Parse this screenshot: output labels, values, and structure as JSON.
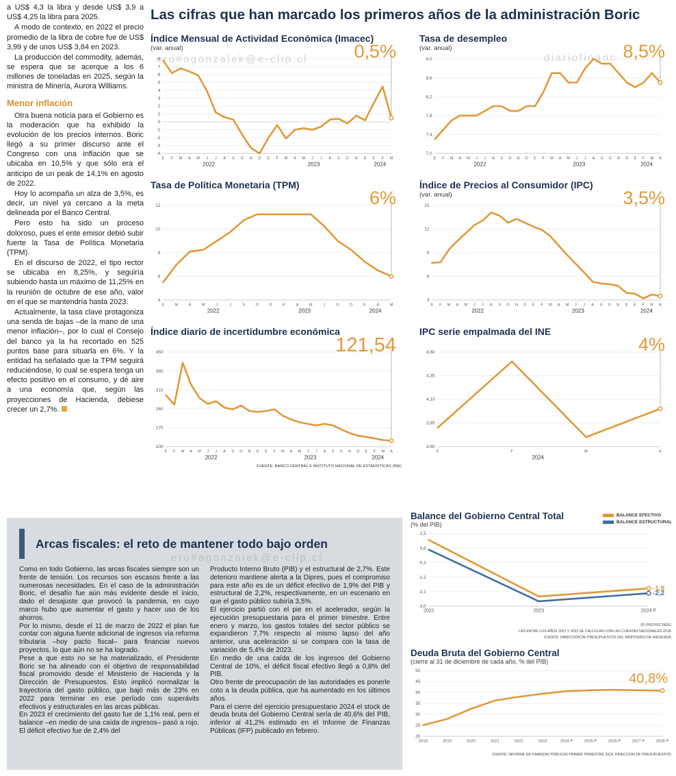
{
  "watermarks": [
    "ero#agonzalek@e-clip.cl",
    "diariofinanc",
    "ero#agonzalek@e-clip.cl"
  ],
  "main_title": "Las cifras que han marcado los primeros años de la administración Boric",
  "left_article": {
    "paragraphs": [
      "a US$ 4,3 la libra y desde US$ 3,9 a US$ 4,25 la libra para 2025.",
      "A modo de contexto, en 2022 el precio promedio de la libra de cobre fue de US$ 3,99 y de unos US$ 3,84 en 2023.",
      "La producción del commodity, además, se espera que se acerque a los 6 millones de toneladas en 2025, según la ministra de Minería, Aurora Williams."
    ],
    "heading": "Menor inflación",
    "paragraphs2": [
      "Otra buena noticia para el Gobierno es la moderación que ha exhibido la evolución de los precios internos. Boric llegó a su primer discurso ante el Congreso con una inflación que se ubicaba en 10,5% y que sólo era el anticipo de un peak de 14,1% en agosto de 2022.",
      "Hoy lo acompaña un alza de 3,5%, es decir, un nivel ya cercano a la meta delineada por el Banco Central.",
      "Pero esto ha sido un proceso doloroso, pues el ente emisor debió subir fuerte la Tasa de Política Monetaria (TPM).",
      "En el discurso de 2022, el tipo rector se ubicaba en 8,25%, y seguiría subiendo hasta un máximo de 11,25% en la reunión de octubre de ese año, valor en el que se mantendría hasta 2023.",
      "Actualmente, la tasa clave protagoniza una senda de bajas –de la mano de una menor inflación–, por lo cual el Consejo del banco ya la ha recortado en 525 puntos base para situarla en 6%. Y la entidad ha señalado que la TPM seguirá reduciéndose, lo cual se espera tenga un efecto positivo en el consumo, y dé aire a una economía que, según las proyecciones de Hacienda, debiese crecer un 2,7%."
    ]
  },
  "fiscal_box": {
    "title": "Arcas fiscales: el reto de mantener todo bajo orden",
    "col1": [
      "Como en todo Gobierno, las arcas fiscales siempre son un frente de tensión. Los recursos son escasos frente a las numerosas necesidades. En el caso de la administración Boric, el desafío fue aún más evidente desde el inicio, dado el desajuste que provocó la pandemia, en cuyo marco hubo que aumentar el gasto y hacer uso de los ahorros.",
      "Por lo mismo, desde el 11 de marzo de 2022 el plan fue contar con alguna fuente adicional de ingresos vía reforma tributaria –hoy pacto fiscal– para financiar nuevos proyectos, lo que aún no se ha logrado.",
      "Pese a que esto no se ha materializado, el Presidente Boric se ha alineado con el objetivo de responsabilidad fiscal promovido desde el Ministerio de Hacienda y la Dirección de Presupuestos. Esto implicó normalizar la trayectoria del gasto público, que bajó más de 23% en 2022 para terminar en ese período con superávits efectivos y estructurales en las arcas públicas.",
      "En 2023 el crecimiento del gasto fue de 1,1% real, pero el balance –en medio de una caída de ingresos– pasó a rojo. El déficit efectivo fue de 2,4% del"
    ],
    "col2": [
      "Producto Interno Bruto (PIB) y el estructural de 2,7%. Este deterioro mantiene alerta a la Dipres, pues el compromiso para este año es de un déficit efectivo de 1,9% del PIB y estructural de 2,2%, respectivamente, en un escenario en que el gasto público subiría 3,5%.",
      "El ejercicio partió con el pie en el acelerador, según la ejecución presupuestaria para el primer trimestre. Entre enero y marzo, los gastos totales del sector público se expandieron 7,7% respecto al mismo lapso del año anterior, una aceleración si se compara con la tasa de variación de 5,4% de 2023.",
      "En medio de una caída de los ingresos del Gobierno Central de 10%, el déficit fiscal efectivo llegó a 0,8% del PIB.",
      "Otro frente de preocupación de las autoridades es ponerle coto a la deuda pública, que ha aumentado en los últimos años.",
      "Para el cierre del ejercicio presupuestario 2024 el stock de deuda bruta del Gobierno Central sería de 40,6% del PIB, inferior al 41,2% estimado en el Informe de Finanzas Públicas (IFP) publicado en febrero."
    ]
  },
  "colors": {
    "accent_orange": "#e0993a",
    "accent_blue": "#3f6fa0",
    "title_navy": "#1d3150"
  },
  "chart_data": [
    {
      "id": "imacec",
      "type": "line",
      "title": "Índice Mensual de Actividad Económica (Imacec)",
      "subtitle": "(var. anual)",
      "big_value": "0,5%",
      "ylim": [
        -4,
        8
      ],
      "ytick_values": [
        8,
        7,
        6,
        5,
        4,
        3,
        2,
        1,
        0,
        -1,
        -2,
        -3,
        -4
      ],
      "ytick_labels": [
        "8",
        "7",
        "6",
        "5",
        "4",
        "3",
        "2",
        "1",
        "0",
        "-1",
        "-2",
        "-3",
        "-4"
      ],
      "xlabels": [
        "E",
        "F",
        "M",
        "A",
        "M",
        "J",
        "J",
        "A",
        "S",
        "O",
        "N",
        "D",
        "E",
        "F",
        "M",
        "A",
        "M",
        "J",
        "J",
        "A",
        "S",
        "O",
        "N",
        "D",
        "E",
        "F",
        "M"
      ],
      "years": [
        {
          "label": "2022",
          "f": 0.2
        },
        {
          "label": "2023",
          "f": 0.66
        },
        {
          "label": "2024",
          "f": 0.95
        }
      ],
      "series": [
        {
          "name": "Imacec",
          "color": "#e0993a",
          "values": [
            7.8,
            6.2,
            6.8,
            6.4,
            5.9,
            3.9,
            1.2,
            0.6,
            0.3,
            -1.6,
            -3.3,
            -4.0,
            -2.0,
            -0.4,
            -2.1,
            -1.0,
            -0.8,
            -1.0,
            -0.6,
            0.3,
            0.4,
            -0.2,
            0.8,
            0.2,
            2.4,
            4.5,
            0.5
          ]
        }
      ],
      "marker": true,
      "value_line": true
    },
    {
      "id": "desempleo",
      "type": "line",
      "title": "Tasa de desempleo",
      "subtitle": "(var. anual)",
      "big_value": "8,5%",
      "ylim": [
        7.0,
        9.0
      ],
      "ytick_values": [
        9.0,
        8.6,
        8.2,
        7.8,
        7.4,
        7.0
      ],
      "ytick_labels": [
        "9,0",
        "8,6",
        "8,2",
        "7,8",
        "7,4",
        "7,0"
      ],
      "xlabels": [
        "E",
        "F",
        "M",
        "A",
        "M",
        "J",
        "J",
        "A",
        "S",
        "O",
        "N",
        "D",
        "E",
        "F",
        "M",
        "A",
        "M",
        "J",
        "J",
        "A",
        "S",
        "O",
        "N",
        "D",
        "E",
        "F",
        "M",
        "A"
      ],
      "years": [
        {
          "label": "2022",
          "f": 0.2
        },
        {
          "label": "2023",
          "f": 0.64
        },
        {
          "label": "2024",
          "f": 0.94
        }
      ],
      "series": [
        {
          "name": "Tasa de desempleo",
          "color": "#e0993a",
          "values": [
            7.3,
            7.5,
            7.7,
            7.8,
            7.8,
            7.8,
            7.9,
            8.0,
            8.0,
            7.9,
            7.9,
            8.0,
            8.0,
            8.3,
            8.7,
            8.7,
            8.5,
            8.5,
            8.8,
            9.0,
            8.9,
            8.9,
            8.7,
            8.5,
            8.4,
            8.5,
            8.7,
            8.5
          ]
        }
      ],
      "marker": true,
      "value_line": true
    },
    {
      "id": "tpm",
      "type": "line",
      "title": "Tasa de Política Monetaria (TPM)",
      "subtitle": "",
      "big_value": "6%",
      "ylim": [
        4,
        12
      ],
      "ytick_values": [
        12,
        10,
        8,
        6,
        4
      ],
      "ytick_labels": [
        "12",
        "10",
        "8",
        "6",
        "4"
      ],
      "xlabels": [
        "E",
        "M",
        "A",
        "M",
        "J",
        "J",
        "S",
        "O",
        "D",
        "E",
        "A",
        "M",
        "J",
        "O",
        "D",
        "E",
        "A",
        "M"
      ],
      "years": [
        {
          "label": "2022",
          "f": 0.22
        },
        {
          "label": "2023",
          "f": 0.62
        },
        {
          "label": "2024",
          "f": 0.93
        }
      ],
      "series": [
        {
          "name": "TPM",
          "color": "#e0993a",
          "values": [
            5.5,
            7.0,
            8.1,
            8.25,
            9.0,
            9.75,
            10.75,
            11.25,
            11.25,
            11.25,
            11.25,
            11.25,
            10.25,
            9.0,
            8.25,
            7.25,
            6.5,
            6.0
          ]
        }
      ],
      "marker": true,
      "value_line": true
    },
    {
      "id": "ipc",
      "type": "line",
      "title": "Índice de Precios al Consumidor (IPC)",
      "subtitle": "(var. anual)",
      "big_value": "3,5%",
      "ylim": [
        3,
        15
      ],
      "ytick_values": [
        15,
        12,
        9,
        6,
        3
      ],
      "ytick_labels": [
        "15",
        "12",
        "9",
        "6",
        "3"
      ],
      "xlabels": [
        "E",
        "F",
        "M",
        "A",
        "M",
        "J",
        "J",
        "A",
        "S",
        "O",
        "N",
        "D",
        "E",
        "F",
        "M",
        "A",
        "M",
        "J",
        "J",
        "A",
        "S",
        "O",
        "N",
        "D",
        "E",
        "F",
        "M",
        "A"
      ],
      "years": [
        {
          "label": "2022",
          "f": 0.2
        },
        {
          "label": "2023",
          "f": 0.64
        },
        {
          "label": "2024",
          "f": 0.94
        }
      ],
      "series": [
        {
          "name": "IPC",
          "color": "#e0993a",
          "values": [
            7.7,
            7.8,
            9.4,
            10.5,
            11.5,
            12.5,
            13.1,
            14.1,
            13.7,
            12.8,
            13.3,
            12.8,
            12.3,
            11.9,
            11.1,
            9.9,
            8.7,
            7.6,
            6.5,
            5.3,
            5.1,
            5.0,
            4.8,
            3.9,
            3.8,
            3.2,
            3.7,
            3.5
          ]
        }
      ],
      "marker": true,
      "value_line": true
    },
    {
      "id": "incertidumbre",
      "type": "line",
      "title": "Índice diario de incertidumbre económica",
      "subtitle": "",
      "big_value": "121,54",
      "ylim": [
        100,
        450
      ],
      "ytick_values": [
        450,
        380,
        310,
        240,
        170,
        100
      ],
      "ytick_labels": [
        "450",
        "380",
        "310",
        "240",
        "170",
        "100"
      ],
      "xlabels": [
        "E",
        "F",
        "M",
        "A",
        "M",
        "J",
        "J",
        "A",
        "S",
        "O",
        "N",
        "D",
        "E",
        "F",
        "M",
        "A",
        "M",
        "J",
        "J",
        "A",
        "S",
        "O",
        "N",
        "D",
        "E",
        "F",
        "M",
        "A"
      ],
      "years": [
        {
          "label": "2022",
          "f": 0.2
        },
        {
          "label": "2023",
          "f": 0.64
        },
        {
          "label": "2024",
          "f": 0.94
        }
      ],
      "series": [
        {
          "name": "Incertidumbre económica",
          "color": "#e0993a",
          "values": [
            290,
            255,
            410,
            330,
            280,
            258,
            268,
            244,
            238,
            252,
            232,
            228,
            232,
            238,
            214,
            200,
            190,
            184,
            178,
            184,
            178,
            164,
            150,
            140,
            136,
            130,
            124,
            121.54
          ]
        }
      ],
      "marker": true,
      "value_line": true,
      "source": "FUENTE: BANCO CENTRAL E INSTITUTO NACIONAL DE ESTADÍSTICAS (INE)"
    },
    {
      "id": "ipc-empalmada",
      "type": "line",
      "title": "IPC serie empalmada del INE",
      "subtitle": "",
      "big_value": "4%",
      "ylim": [
        3.6,
        4.6
      ],
      "ytick_values": [
        4.6,
        4.35,
        4.1,
        3.85,
        3.6
      ],
      "ytick_labels": [
        "4,60",
        "4,35",
        "4,10",
        "3,85",
        "3,60"
      ],
      "xlabels": [
        "E",
        "F",
        "M",
        "A"
      ],
      "years": [
        {
          "label": "2024",
          "f": 0.45
        }
      ],
      "series": [
        {
          "name": "IPC empalmado",
          "color": "#e0993a",
          "values": [
            3.8,
            4.5,
            3.7,
            4.0
          ]
        }
      ],
      "marker": true,
      "value_line": true
    },
    {
      "id": "balance",
      "type": "line",
      "title": "Balance del Gobierno Central Total",
      "subtitle": "(% del PIB)",
      "legend": [
        "BALANCE EFECTIVO",
        "BALANCE ESTRUCTURAL"
      ],
      "ylim": [
        -3.0,
        1.5
      ],
      "ytick_values": [
        1.5,
        0.6,
        -0.3,
        -1.2,
        -2.1,
        -3.0
      ],
      "ytick_labels": [
        "1,5",
        "0,6",
        "-0,3",
        "-1,2",
        "-2,1",
        "-3,0"
      ],
      "xlabels": [
        "2022",
        "2023",
        "2024 P"
      ],
      "xlabel_size": 7,
      "series": [
        {
          "name": "Balance efectivo",
          "color": "#e0993a",
          "values": [
            1.1,
            -2.4,
            -1.9
          ],
          "end_label": "-1,9"
        },
        {
          "name": "Balance estructural",
          "color": "#3f6fa0",
          "values": [
            0.5,
            -2.7,
            -2.2
          ],
          "end_label": "-2,2"
        }
      ],
      "marker": true,
      "value_line": false,
      "footnotes": [
        "(P) PROYECTADO.",
        "LAS ENTRE LOS AÑOS 2021 Y 2023 SE CALCULAN CON LAS CUENTAS NACIONALES 2018.",
        "FUENTE: DIRECCIÓN DE PRESUPUESTOS DEL MINISTERIO DE HACIENDA."
      ]
    },
    {
      "id": "deuda",
      "type": "line",
      "title": "Deuda Bruta del Gobierno Central",
      "subtitle": "(cierre al 31 de diciembre de cada año, % del PIB)",
      "big_value": "40,8%",
      "ylim": [
        20,
        50
      ],
      "ytick_values": [
        50,
        45,
        40,
        35,
        30,
        25,
        20
      ],
      "ytick_labels": [
        "50",
        "45",
        "40",
        "35",
        "30",
        "25",
        "20"
      ],
      "xlabels": [
        "2018",
        "2019",
        "2020",
        "2021",
        "2022",
        "2023",
        "2024 P",
        "2025 P",
        "2026 P",
        "2027 P",
        "2028 P"
      ],
      "xlabel_size": 5.8,
      "series": [
        {
          "name": "Deuda bruta",
          "color": "#e0993a",
          "values": [
            25.1,
            27.9,
            32.5,
            36.3,
            38.0,
            39.4,
            40.6,
            41.0,
            41.2,
            41.0,
            40.8
          ]
        }
      ],
      "marker": true,
      "value_line": false,
      "source": "FUENTE: INFORME DE FINANZAS PÚBLICAS PRIMER TRIMESTRE 2024, DIRECCIÓN DE PRESUPUESTOS."
    }
  ]
}
